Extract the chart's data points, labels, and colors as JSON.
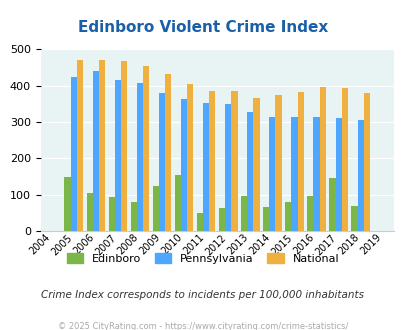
{
  "title": "Edinboro Violent Crime Index",
  "years": [
    2005,
    2006,
    2007,
    2008,
    2009,
    2010,
    2011,
    2012,
    2013,
    2014,
    2015,
    2016,
    2017,
    2018
  ],
  "edinboro": [
    148,
    105,
    95,
    80,
    123,
    155,
    50,
    62,
    96,
    65,
    80,
    97,
    147,
    70
  ],
  "pennsylvania": [
    425,
    440,
    417,
    408,
    380,
    365,
    353,
    349,
    328,
    315,
    315,
    315,
    311,
    305
  ],
  "national": [
    470,
    471,
    468,
    455,
    432,
    405,
    387,
    387,
    367,
    376,
    383,
    397,
    393,
    379
  ],
  "edinboro_color": "#7ab648",
  "pennsylvania_color": "#4da6ff",
  "national_color": "#f0b040",
  "bg_color": "#e8f4f4",
  "title_color": "#1a5fa8",
  "subtitle": "Crime Index corresponds to incidents per 100,000 inhabitants",
  "footer": "© 2025 CityRating.com - https://www.cityrating.com/crime-statistics/",
  "ylim": [
    0,
    500
  ],
  "yticks": [
    0,
    100,
    200,
    300,
    400,
    500
  ],
  "all_years": [
    2004,
    2005,
    2006,
    2007,
    2008,
    2009,
    2010,
    2011,
    2012,
    2013,
    2014,
    2015,
    2016,
    2017,
    2018,
    2019
  ]
}
